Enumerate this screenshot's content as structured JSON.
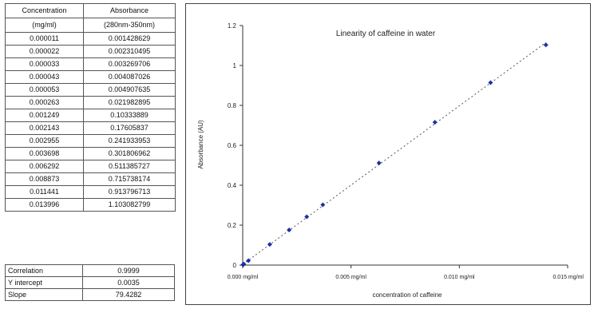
{
  "table": {
    "header": [
      "Concentration",
      "Absorbance"
    ],
    "subheader": [
      "(mg/ml)",
      "(280nm-350nm)"
    ],
    "rows": [
      [
        "0.000011",
        "0.001428629"
      ],
      [
        "0.000022",
        "0.002310495"
      ],
      [
        "0.000033",
        "0.003269706"
      ],
      [
        "0.000043",
        "0.004087026"
      ],
      [
        "0.000053",
        "0.004907635"
      ],
      [
        "0.000263",
        "0.021982895"
      ],
      [
        "0.001249",
        "0.10333889"
      ],
      [
        "0.002143",
        "0.17605837"
      ],
      [
        "0.002955",
        "0.241933953"
      ],
      [
        "0.003698",
        "0.301806962"
      ],
      [
        "0.006292",
        "0.511385727"
      ],
      [
        "0.008873",
        "0.715738174"
      ],
      [
        "0.011441",
        "0.913796713"
      ],
      [
        "0.013996",
        "1.103082799"
      ]
    ]
  },
  "stats": [
    {
      "label": "Correlation",
      "value": "0.9999"
    },
    {
      "label": "Y intercept",
      "value": "0.0035"
    },
    {
      "label": "Slope",
      "value": "79.4282"
    }
  ],
  "chart_data": {
    "type": "scatter",
    "title": "Linearity of caffeine in water",
    "xlabel": "concentration of caffeine",
    "ylabel": "Absorbance (AU)",
    "xlim": [
      0,
      0.015
    ],
    "ylim": [
      0,
      1.2
    ],
    "x_ticks": [
      0,
      0.005,
      0.01,
      0.015
    ],
    "x_tick_labels": [
      "0.000 mg/ml",
      "0.005 mg/ml",
      "0.010 mg/ml",
      "0.015 mg/ml"
    ],
    "y_ticks": [
      0,
      0.2,
      0.4,
      0.6,
      0.8,
      1,
      1.2
    ],
    "y_tick_labels": [
      "0",
      "0.2",
      "0.4",
      "0.6",
      "0.8",
      "1",
      "1.2"
    ],
    "grid": false,
    "marker_color": "#1c2fa8",
    "trendline": {
      "style": "dotted",
      "color": "#555555",
      "slope": 79.4282,
      "intercept": 0.0035
    },
    "points": [
      {
        "x": 1.1e-05,
        "y": 0.001428629
      },
      {
        "x": 2.2e-05,
        "y": 0.002310495
      },
      {
        "x": 3.3e-05,
        "y": 0.003269706
      },
      {
        "x": 4.3e-05,
        "y": 0.004087026
      },
      {
        "x": 5.3e-05,
        "y": 0.004907635
      },
      {
        "x": 0.000263,
        "y": 0.021982895
      },
      {
        "x": 0.001249,
        "y": 0.10333889
      },
      {
        "x": 0.002143,
        "y": 0.17605837
      },
      {
        "x": 0.002955,
        "y": 0.241933953
      },
      {
        "x": 0.003698,
        "y": 0.301806962
      },
      {
        "x": 0.006292,
        "y": 0.511385727
      },
      {
        "x": 0.008873,
        "y": 0.715738174
      },
      {
        "x": 0.011441,
        "y": 0.913796713
      },
      {
        "x": 0.013996,
        "y": 1.103082799
      }
    ]
  }
}
